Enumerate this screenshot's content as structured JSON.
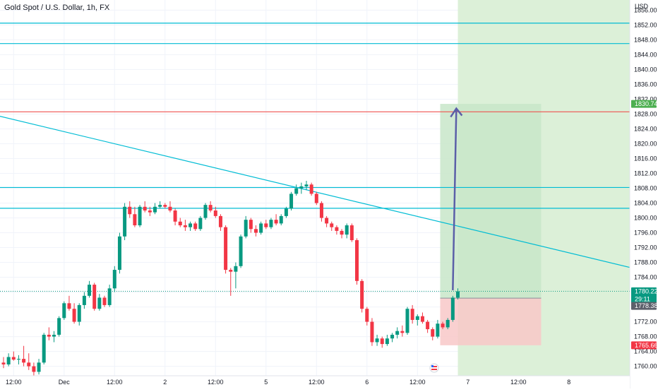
{
  "header": {
    "title": "Gold Spot / U.S. Dollar, 1h, FX"
  },
  "axis": {
    "currency": "USD"
  },
  "colors": {
    "up": "#089981",
    "down": "#f23645",
    "level": "#00bcd4",
    "resistance": "#ef5350",
    "target_zone": "#c8e6c9",
    "stop_zone": "#f8c8c8",
    "future_zone": "#dcf0d8",
    "arrow": "#5b5fa8"
  },
  "chart_data": {
    "type": "candlestick",
    "title": "Gold Spot / U.S. Dollar, 1h, FX",
    "ylabel": "USD",
    "ylim": [
      1758.4,
      1857.6
    ],
    "y_ticks": [
      "1856.00",
      "1852.00",
      "1848.00",
      "1844.00",
      "1840.00",
      "1836.00",
      "1832.00",
      "1828.00",
      "1824.00",
      "1820.00",
      "1816.00",
      "1812.00",
      "1808.00",
      "1804.00",
      "1800.00",
      "1796.00",
      "1792.00",
      "1788.00",
      "1784.00",
      "1780.00",
      "1776.00",
      "1772.00",
      "1768.00",
      "1764.00",
      "1760.00"
    ],
    "x_ticks": [
      {
        "label": "12:00",
        "bar": 2
      },
      {
        "label": "Dec",
        "bar": 12
      },
      {
        "label": "12:00",
        "bar": 22
      },
      {
        "label": "2",
        "bar": 32
      },
      {
        "label": "12:00",
        "bar": 42
      },
      {
        "label": "5",
        "bar": 52
      },
      {
        "label": "12:00",
        "bar": 62
      },
      {
        "label": "6",
        "bar": 72
      },
      {
        "label": "12:00",
        "bar": 82
      },
      {
        "label": "7",
        "bar": 92
      },
      {
        "label": "12:00",
        "bar": 102
      },
      {
        "label": "8",
        "bar": 112
      }
    ],
    "candles": [
      {
        "o": 1761.0,
        "h": 1762.5,
        "l": 1759.5,
        "c": 1760.5
      },
      {
        "o": 1760.5,
        "h": 1763.5,
        "l": 1760.0,
        "c": 1762.5
      },
      {
        "o": 1762.5,
        "h": 1764.0,
        "l": 1761.5,
        "c": 1761.8
      },
      {
        "o": 1761.8,
        "h": 1763.0,
        "l": 1760.5,
        "c": 1762.0
      },
      {
        "o": 1762.0,
        "h": 1765.5,
        "l": 1760.0,
        "c": 1761.0
      },
      {
        "o": 1761.0,
        "h": 1763.5,
        "l": 1759.0,
        "c": 1760.0
      },
      {
        "o": 1760.0,
        "h": 1761.0,
        "l": 1757.5,
        "c": 1758.5
      },
      {
        "o": 1758.5,
        "h": 1762.0,
        "l": 1757.8,
        "c": 1761.0
      },
      {
        "o": 1761.0,
        "h": 1769.0,
        "l": 1760.5,
        "c": 1768.5
      },
      {
        "o": 1768.5,
        "h": 1770.5,
        "l": 1767.0,
        "c": 1768.0
      },
      {
        "o": 1768.0,
        "h": 1769.5,
        "l": 1766.5,
        "c": 1768.5
      },
      {
        "o": 1768.5,
        "h": 1773.5,
        "l": 1768.0,
        "c": 1773.0
      },
      {
        "o": 1773.0,
        "h": 1777.5,
        "l": 1772.5,
        "c": 1777.0
      },
      {
        "o": 1777.0,
        "h": 1779.0,
        "l": 1775.0,
        "c": 1775.5
      },
      {
        "o": 1775.5,
        "h": 1777.0,
        "l": 1771.5,
        "c": 1772.0
      },
      {
        "o": 1772.0,
        "h": 1777.0,
        "l": 1771.0,
        "c": 1776.5
      },
      {
        "o": 1776.5,
        "h": 1780.0,
        "l": 1775.5,
        "c": 1779.0
      },
      {
        "o": 1779.0,
        "h": 1783.0,
        "l": 1778.5,
        "c": 1782.0
      },
      {
        "o": 1782.0,
        "h": 1782.5,
        "l": 1775.0,
        "c": 1775.5
      },
      {
        "o": 1775.5,
        "h": 1779.5,
        "l": 1775.0,
        "c": 1778.5
      },
      {
        "o": 1778.5,
        "h": 1779.0,
        "l": 1776.0,
        "c": 1776.5
      },
      {
        "o": 1776.5,
        "h": 1782.0,
        "l": 1776.0,
        "c": 1781.0
      },
      {
        "o": 1781.0,
        "h": 1787.0,
        "l": 1780.0,
        "c": 1786.0
      },
      {
        "o": 1786.0,
        "h": 1796.0,
        "l": 1785.0,
        "c": 1795.0
      },
      {
        "o": 1795.0,
        "h": 1804.0,
        "l": 1794.0,
        "c": 1803.0
      },
      {
        "o": 1803.0,
        "h": 1804.5,
        "l": 1800.0,
        "c": 1801.0
      },
      {
        "o": 1801.0,
        "h": 1803.0,
        "l": 1797.5,
        "c": 1798.0
      },
      {
        "o": 1798.0,
        "h": 1803.5,
        "l": 1797.5,
        "c": 1803.0
      },
      {
        "o": 1803.0,
        "h": 1804.5,
        "l": 1801.5,
        "c": 1802.0
      },
      {
        "o": 1802.0,
        "h": 1803.0,
        "l": 1800.5,
        "c": 1801.5
      },
      {
        "o": 1801.5,
        "h": 1804.0,
        "l": 1801.0,
        "c": 1803.0
      },
      {
        "o": 1803.0,
        "h": 1804.5,
        "l": 1802.5,
        "c": 1803.5
      },
      {
        "o": 1803.5,
        "h": 1804.0,
        "l": 1802.5,
        "c": 1803.0
      },
      {
        "o": 1803.0,
        "h": 1804.5,
        "l": 1801.5,
        "c": 1802.0
      },
      {
        "o": 1802.0,
        "h": 1802.5,
        "l": 1798.0,
        "c": 1799.0
      },
      {
        "o": 1799.0,
        "h": 1800.0,
        "l": 1797.5,
        "c": 1798.0
      },
      {
        "o": 1798.0,
        "h": 1799.5,
        "l": 1796.5,
        "c": 1797.5
      },
      {
        "o": 1797.5,
        "h": 1799.0,
        "l": 1796.5,
        "c": 1798.5
      },
      {
        "o": 1798.5,
        "h": 1799.0,
        "l": 1796.5,
        "c": 1797.0
      },
      {
        "o": 1797.0,
        "h": 1800.5,
        "l": 1796.5,
        "c": 1800.0
      },
      {
        "o": 1800.0,
        "h": 1804.0,
        "l": 1799.5,
        "c": 1803.5
      },
      {
        "o": 1803.5,
        "h": 1804.5,
        "l": 1801.5,
        "c": 1802.0
      },
      {
        "o": 1802.0,
        "h": 1803.0,
        "l": 1800.0,
        "c": 1800.5
      },
      {
        "o": 1800.5,
        "h": 1801.0,
        "l": 1796.5,
        "c": 1797.5
      },
      {
        "o": 1797.5,
        "h": 1798.0,
        "l": 1785.0,
        "c": 1786.0
      },
      {
        "o": 1786.0,
        "h": 1786.5,
        "l": 1779.0,
        "c": 1785.5
      },
      {
        "o": 1785.5,
        "h": 1788.0,
        "l": 1781.0,
        "c": 1787.0
      },
      {
        "o": 1787.0,
        "h": 1795.5,
        "l": 1786.5,
        "c": 1795.0
      },
      {
        "o": 1795.0,
        "h": 1800.5,
        "l": 1794.5,
        "c": 1799.5
      },
      {
        "o": 1799.5,
        "h": 1800.0,
        "l": 1796.0,
        "c": 1797.0
      },
      {
        "o": 1797.0,
        "h": 1798.0,
        "l": 1795.0,
        "c": 1796.0
      },
      {
        "o": 1796.0,
        "h": 1799.0,
        "l": 1795.5,
        "c": 1798.5
      },
      {
        "o": 1798.5,
        "h": 1799.5,
        "l": 1797.0,
        "c": 1797.5
      },
      {
        "o": 1797.5,
        "h": 1800.0,
        "l": 1797.0,
        "c": 1799.5
      },
      {
        "o": 1799.5,
        "h": 1801.0,
        "l": 1798.0,
        "c": 1798.5
      },
      {
        "o": 1798.5,
        "h": 1801.0,
        "l": 1798.0,
        "c": 1800.5
      },
      {
        "o": 1800.5,
        "h": 1803.0,
        "l": 1800.0,
        "c": 1802.5
      },
      {
        "o": 1802.5,
        "h": 1807.0,
        "l": 1802.0,
        "c": 1806.5
      },
      {
        "o": 1806.5,
        "h": 1809.0,
        "l": 1806.0,
        "c": 1808.0
      },
      {
        "o": 1808.0,
        "h": 1809.5,
        "l": 1806.5,
        "c": 1808.5
      },
      {
        "o": 1808.5,
        "h": 1810.0,
        "l": 1807.5,
        "c": 1809.0
      },
      {
        "o": 1809.0,
        "h": 1809.5,
        "l": 1806.0,
        "c": 1806.5
      },
      {
        "o": 1806.5,
        "h": 1807.0,
        "l": 1803.5,
        "c": 1804.0
      },
      {
        "o": 1804.0,
        "h": 1804.5,
        "l": 1799.0,
        "c": 1800.0
      },
      {
        "o": 1800.0,
        "h": 1800.5,
        "l": 1797.5,
        "c": 1798.5
      },
      {
        "o": 1798.5,
        "h": 1799.0,
        "l": 1796.5,
        "c": 1797.5
      },
      {
        "o": 1797.5,
        "h": 1798.0,
        "l": 1795.5,
        "c": 1796.5
      },
      {
        "o": 1796.5,
        "h": 1797.0,
        "l": 1794.5,
        "c": 1795.5
      },
      {
        "o": 1795.5,
        "h": 1798.5,
        "l": 1794.5,
        "c": 1798.0
      },
      {
        "o": 1798.0,
        "h": 1798.5,
        "l": 1793.5,
        "c": 1794.0
      },
      {
        "o": 1794.0,
        "h": 1794.5,
        "l": 1782.0,
        "c": 1783.0
      },
      {
        "o": 1783.0,
        "h": 1783.5,
        "l": 1774.5,
        "c": 1775.5
      },
      {
        "o": 1775.5,
        "h": 1776.0,
        "l": 1771.0,
        "c": 1772.0
      },
      {
        "o": 1772.0,
        "h": 1773.0,
        "l": 1765.5,
        "c": 1766.5
      },
      {
        "o": 1766.5,
        "h": 1768.5,
        "l": 1765.5,
        "c": 1767.5
      },
      {
        "o": 1767.5,
        "h": 1768.0,
        "l": 1765.0,
        "c": 1766.0
      },
      {
        "o": 1766.0,
        "h": 1768.5,
        "l": 1765.5,
        "c": 1767.5
      },
      {
        "o": 1767.5,
        "h": 1769.0,
        "l": 1766.5,
        "c": 1768.5
      },
      {
        "o": 1768.5,
        "h": 1770.5,
        "l": 1767.5,
        "c": 1769.5
      },
      {
        "o": 1769.5,
        "h": 1771.0,
        "l": 1768.0,
        "c": 1769.0
      },
      {
        "o": 1769.0,
        "h": 1776.0,
        "l": 1768.5,
        "c": 1775.5
      },
      {
        "o": 1775.5,
        "h": 1776.5,
        "l": 1771.5,
        "c": 1772.5
      },
      {
        "o": 1772.5,
        "h": 1774.0,
        "l": 1771.0,
        "c": 1773.5
      },
      {
        "o": 1773.5,
        "h": 1774.5,
        "l": 1771.5,
        "c": 1772.0
      },
      {
        "o": 1772.0,
        "h": 1772.5,
        "l": 1769.0,
        "c": 1770.0
      },
      {
        "o": 1770.0,
        "h": 1770.5,
        "l": 1767.0,
        "c": 1768.0
      },
      {
        "o": 1768.0,
        "h": 1772.5,
        "l": 1767.5,
        "c": 1771.5
      },
      {
        "o": 1771.5,
        "h": 1772.0,
        "l": 1770.0,
        "c": 1770.5
      },
      {
        "o": 1770.5,
        "h": 1773.0,
        "l": 1770.0,
        "c": 1772.5
      },
      {
        "o": 1772.5,
        "h": 1779.0,
        "l": 1772.0,
        "c": 1778.5
      },
      {
        "o": 1778.5,
        "h": 1781.0,
        "l": 1778.0,
        "c": 1780.2
      }
    ],
    "horizontal_levels": [
      {
        "price": 1852.5,
        "color": "level"
      },
      {
        "price": 1847.0,
        "color": "level"
      },
      {
        "price": 1828.6,
        "color": "resistance"
      },
      {
        "price": 1808.2,
        "color": "level"
      },
      {
        "price": 1802.6,
        "color": "level"
      }
    ],
    "trendline": {
      "from": {
        "bar": -1,
        "price": 1827.5
      },
      "to": {
        "bar": 127,
        "price": 1785.7
      }
    },
    "position": {
      "from_bar": 86.5,
      "to_bar": 106.5,
      "entry": 1778.38,
      "target": 1830.74,
      "stop": 1765.66
    },
    "future_zone": {
      "from_bar": 90,
      "to_bar": 130
    },
    "arrow": {
      "from": {
        "bar": 89,
        "price": 1780.5
      },
      "to": {
        "bar": 89.7,
        "price": 1829.5
      }
    },
    "current_price": 1780.22,
    "dotted_price": 1780.22,
    "badges": [
      {
        "text": "1830.74",
        "price": 1830.74,
        "bg": "#4caf50"
      },
      {
        "text": "1780.22",
        "price": 1780.22,
        "bg": "#089981",
        "sub": "29:11"
      },
      {
        "text": "1778.38",
        "price": 1778.38,
        "bg": "#5d606b",
        "offset": 11
      },
      {
        "text": "1765.66",
        "price": 1765.66,
        "bg": "#f23645"
      }
    ]
  }
}
